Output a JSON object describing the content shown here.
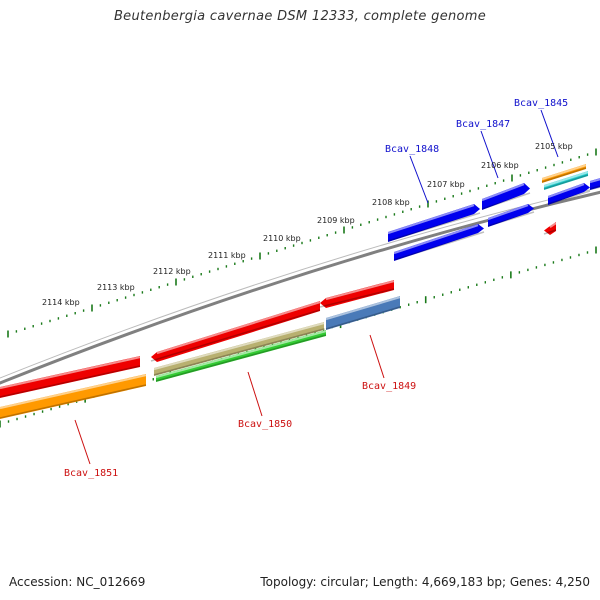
{
  "title": "Beutenbergia cavernae DSM 12333, complete genome",
  "footer": {
    "accession": "Accession: NC_012669",
    "summary": "Topology: circular; Length: 4,669,183 bp; Genes: 4,250"
  },
  "colors": {
    "backbone": "#808080",
    "ticks": "#1a7a1a",
    "forward_label": "#1010cc",
    "reverse_label": "#cc1010",
    "red": "#ee0000",
    "blue": "#0000ee",
    "orange": "#ff9900",
    "olive": "#b8b070",
    "green": "#33cc33",
    "steel": "#4a7ab8",
    "cyan": "#22cccc"
  },
  "ruler_labels": [
    "2114 kbp",
    "2113 kbp",
    "2112 kbp",
    "2111 kbp",
    "2110 kbp",
    "2109 kbp",
    "2108 kbp",
    "2107 kbp",
    "2106 kbp",
    "2105 kbp"
  ],
  "gene_labels": {
    "forward": [
      "Bcav_1848",
      "Bcav_1847",
      "Bcav_1845"
    ],
    "reverse": [
      "Bcav_1851",
      "Bcav_1850",
      "Bcav_1849"
    ]
  }
}
